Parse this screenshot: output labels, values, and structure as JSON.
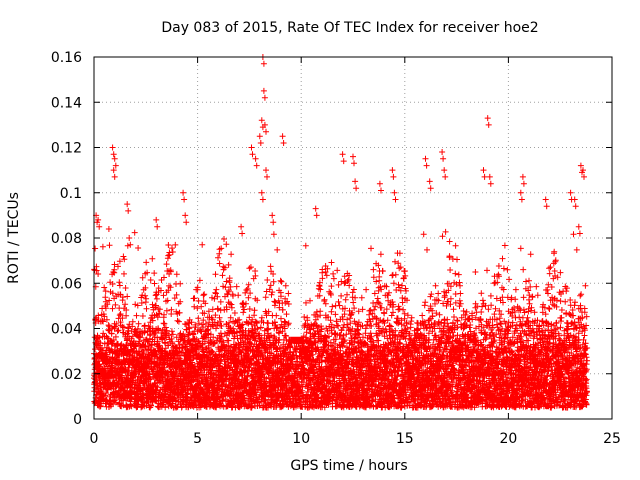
{
  "chart_data": {
    "type": "scatter",
    "title": "Day 083 of 2015, Rate Of TEC Index for receiver hoe2",
    "xlabel": "GPS time / hours",
    "ylabel": "ROTI / TECUs",
    "xlim": [
      0,
      25
    ],
    "ylim": [
      0,
      0.16
    ],
    "xticks": [
      0,
      5,
      10,
      15,
      20,
      25
    ],
    "xtick_labels": [
      "0",
      "5",
      "10",
      "15",
      "20",
      "25"
    ],
    "yticks": [
      0,
      0.02,
      0.04,
      0.06,
      0.08,
      0.1,
      0.12,
      0.14,
      0.16
    ],
    "ytick_labels": [
      "0",
      "0.02",
      "0.04",
      "0.06",
      "0.08",
      "0.1",
      "0.12",
      "0.14",
      "0.16"
    ],
    "grid": true,
    "marker": "plus",
    "color": "#ff0000",
    "series": [
      {
        "name": "ROTI",
        "x_range": [
          0,
          23.8
        ],
        "y_floor": 0.005,
        "y_dense_top": 0.045,
        "notable_points": [
          {
            "x": 0.9,
            "y": 0.12
          },
          {
            "x": 1.0,
            "y": 0.115
          },
          {
            "x": 0.95,
            "y": 0.11
          },
          {
            "x": 0.1,
            "y": 0.09
          },
          {
            "x": 0.2,
            "y": 0.088
          },
          {
            "x": 1.6,
            "y": 0.095
          },
          {
            "x": 1.7,
            "y": 0.08
          },
          {
            "x": 3.0,
            "y": 0.088
          },
          {
            "x": 4.3,
            "y": 0.1
          },
          {
            "x": 4.4,
            "y": 0.09
          },
          {
            "x": 7.1,
            "y": 0.085
          },
          {
            "x": 7.6,
            "y": 0.12
          },
          {
            "x": 7.8,
            "y": 0.115
          },
          {
            "x": 8.0,
            "y": 0.125
          },
          {
            "x": 8.1,
            "y": 0.132
          },
          {
            "x": 8.15,
            "y": 0.16
          },
          {
            "x": 8.2,
            "y": 0.145
          },
          {
            "x": 8.25,
            "y": 0.13
          },
          {
            "x": 8.3,
            "y": 0.11
          },
          {
            "x": 8.1,
            "y": 0.1
          },
          {
            "x": 9.1,
            "y": 0.125
          },
          {
            "x": 8.6,
            "y": 0.09
          },
          {
            "x": 10.7,
            "y": 0.093
          },
          {
            "x": 12.0,
            "y": 0.117
          },
          {
            "x": 12.5,
            "y": 0.116
          },
          {
            "x": 12.6,
            "y": 0.105
          },
          {
            "x": 13.8,
            "y": 0.104
          },
          {
            "x": 14.4,
            "y": 0.11
          },
          {
            "x": 14.5,
            "y": 0.1
          },
          {
            "x": 16.0,
            "y": 0.115
          },
          {
            "x": 16.2,
            "y": 0.105
          },
          {
            "x": 16.8,
            "y": 0.118
          },
          {
            "x": 16.9,
            "y": 0.11
          },
          {
            "x": 18.8,
            "y": 0.11
          },
          {
            "x": 19.0,
            "y": 0.133
          },
          {
            "x": 19.1,
            "y": 0.107
          },
          {
            "x": 20.7,
            "y": 0.107
          },
          {
            "x": 20.6,
            "y": 0.1
          },
          {
            "x": 21.8,
            "y": 0.097
          },
          {
            "x": 23.0,
            "y": 0.1
          },
          {
            "x": 23.2,
            "y": 0.097
          },
          {
            "x": 23.5,
            "y": 0.112
          },
          {
            "x": 23.6,
            "y": 0.11
          },
          {
            "x": 23.4,
            "y": 0.085
          }
        ]
      }
    ]
  }
}
